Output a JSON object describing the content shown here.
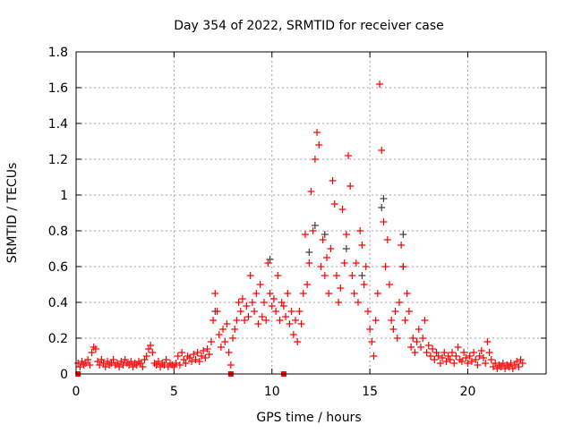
{
  "chart_data": {
    "type": "scatter",
    "title": "Day 354 of 2022, SRMTID for receiver case",
    "xlabel": "GPS time / hours",
    "ylabel": "SRMTID / TECUs",
    "xlim": [
      0,
      24
    ],
    "ylim": [
      0,
      1.8
    ],
    "xticks": [
      "0",
      "5",
      "10",
      "15",
      "20"
    ],
    "xtick_values": [
      0,
      5,
      10,
      15,
      20
    ],
    "yticks": [
      "0",
      "0.2",
      "0.4",
      "0.6",
      "0.8",
      "1",
      "1.2",
      "1.4",
      "1.6",
      "1.8"
    ],
    "ytick_values": [
      0,
      0.2,
      0.4,
      0.6,
      0.8,
      1.0,
      1.2,
      1.4,
      1.6,
      1.8
    ],
    "grid": true,
    "legend": "none",
    "colors": {
      "primary": "#ff0000",
      "secondary": "#404040",
      "grid": "#a0a0a0"
    },
    "series": [
      {
        "name": "secondary",
        "marker": "plus",
        "points": [
          [
            7.1,
            0.35
          ],
          [
            9.9,
            0.64
          ],
          [
            12.2,
            0.83
          ],
          [
            12.7,
            0.78
          ],
          [
            13.8,
            0.7
          ],
          [
            15.6,
            0.93
          ],
          [
            15.7,
            0.98
          ],
          [
            16.7,
            0.78
          ],
          [
            16.7,
            0.6
          ],
          [
            11.9,
            0.68
          ],
          [
            14.6,
            0.55
          ]
        ]
      },
      {
        "name": "primary",
        "marker": "plus",
        "x_start": 0.1,
        "x_step": 0.1,
        "y": [
          0.06,
          0.04,
          0.07,
          0.05,
          0.06,
          0.08,
          0.05,
          0.12,
          0.15,
          0.14,
          0.07,
          0.05,
          0.08,
          0.06,
          0.04,
          0.07,
          0.05,
          0.06,
          0.08,
          0.05,
          0.06,
          0.04,
          0.07,
          0.05,
          0.08,
          0.06,
          0.05,
          0.07,
          0.04,
          0.06,
          0.05,
          0.07,
          0.06,
          0.04,
          0.08,
          0.1,
          0.14,
          0.16,
          0.12,
          0.06,
          0.05,
          0.07,
          0.04,
          0.06,
          0.05,
          0.08,
          0.04,
          0.06,
          0.05,
          0.04,
          0.06,
          0.1,
          0.05,
          0.12,
          0.08,
          0.06,
          0.1,
          0.09,
          0.07,
          0.11,
          0.08,
          0.12,
          0.07,
          0.1,
          0.13,
          0.09,
          0.14,
          0.11,
          0.18,
          0.3,
          0.45,
          0.35,
          0.22,
          0.15,
          0.25,
          0.18,
          0.28,
          0.12,
          0.05,
          0.2,
          0.25,
          0.3,
          0.4,
          0.35,
          0.42,
          0.3,
          0.38,
          0.32,
          0.55,
          0.4,
          0.35,
          0.45,
          0.28,
          0.5,
          0.32,
          0.4,
          0.3,
          0.62,
          0.45,
          0.38,
          0.42,
          0.35,
          0.55,
          0.3,
          0.4,
          0.38,
          0.32,
          0.45,
          0.28,
          0.35,
          0.22,
          0.3,
          0.18,
          0.35,
          0.28,
          0.45,
          0.78,
          0.5,
          0.62,
          1.02,
          0.8,
          1.2,
          1.35,
          1.28,
          0.6,
          0.75,
          0.55,
          0.65,
          0.45,
          0.7,
          1.08,
          0.95,
          0.55,
          0.4,
          0.48,
          0.92,
          0.62,
          0.78,
          1.22,
          1.05,
          0.55,
          0.45,
          0.62,
          0.4,
          0.8,
          0.72,
          0.5,
          0.6,
          0.35,
          0.25,
          0.18,
          0.1,
          0.3,
          0.45,
          1.62,
          1.25,
          0.85,
          0.6,
          0.75,
          0.5,
          0.3,
          0.25,
          0.35,
          0.2,
          0.4,
          0.72,
          0.6,
          0.3,
          0.45,
          0.35,
          0.15,
          0.2,
          0.12,
          0.18,
          0.25,
          0.15,
          0.2,
          0.3,
          0.12,
          0.16,
          0.1,
          0.14,
          0.08,
          0.12,
          0.1,
          0.06,
          0.09,
          0.12,
          0.07,
          0.1,
          0.08,
          0.12,
          0.06,
          0.1,
          0.15,
          0.08,
          0.07,
          0.12,
          0.09,
          0.06,
          0.1,
          0.07,
          0.12,
          0.08,
          0.05,
          0.1,
          0.13,
          0.09,
          0.06,
          0.18,
          0.12,
          0.08,
          0.04,
          0.06,
          0.03,
          0.05,
          0.04,
          0.06,
          0.03,
          0.05,
          0.04,
          0.06,
          0.03,
          0.05,
          0.07,
          0.04,
          0.08,
          0.06
        ]
      },
      {
        "name": "zero-markers",
        "marker": "square",
        "points": [
          [
            0.1,
            0
          ],
          [
            7.9,
            0
          ],
          [
            10.6,
            0
          ]
        ]
      }
    ]
  }
}
